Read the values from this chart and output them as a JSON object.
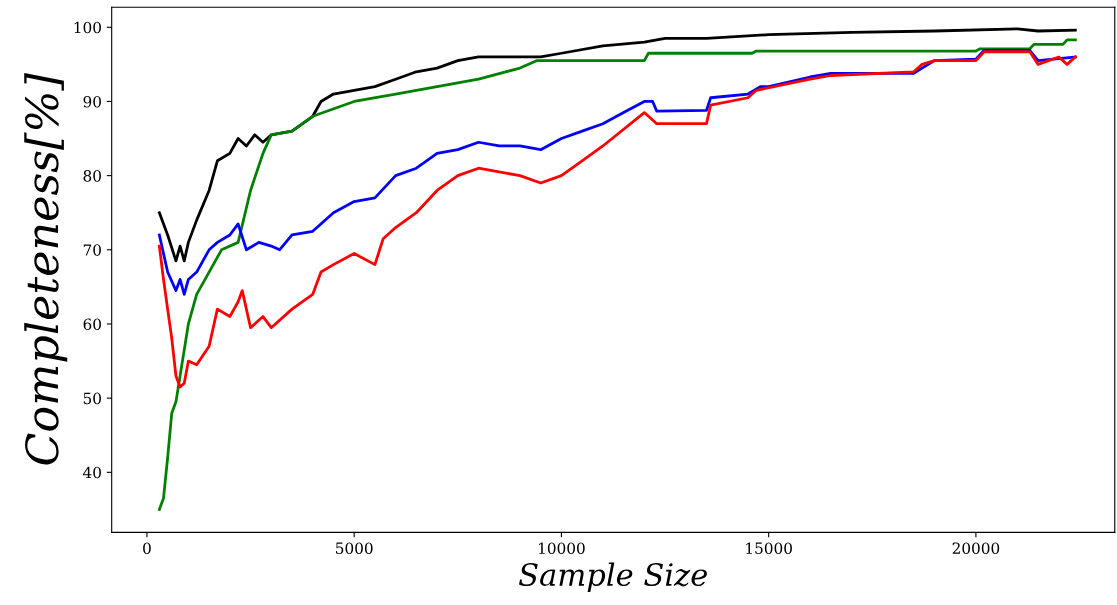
{
  "chart_data": {
    "type": "line",
    "xlabel": "Sample Size",
    "ylabel": "Completeness[%]",
    "xlim": [
      -850,
      23350
    ],
    "ylim": [
      31.9,
      102.7
    ],
    "xticks": [
      0,
      5000,
      10000,
      15000,
      20000
    ],
    "yticks": [
      40,
      50,
      60,
      70,
      80,
      90,
      100
    ],
    "grid": false,
    "legend": false,
    "marker": "none",
    "line_style": "solid",
    "series": [
      {
        "color": "#000000",
        "x": [
          300,
          500,
          700,
          800,
          900,
          1000,
          1200,
          1500,
          1700,
          2000,
          2200,
          2400,
          2600,
          2800,
          3000,
          3500,
          4000,
          4200,
          4500,
          5000,
          5500,
          6000,
          6500,
          7000,
          7500,
          8000,
          9000,
          9500,
          10000,
          11000,
          12000,
          12500,
          13500,
          15000,
          17000,
          19000,
          21000,
          21500,
          22400
        ],
        "values": [
          75,
          72,
          68.5,
          70.5,
          68.5,
          71,
          74,
          78,
          82,
          83,
          85,
          84,
          85.5,
          84.5,
          85.5,
          86,
          88,
          90,
          91,
          91.5,
          92,
          93,
          94,
          94.5,
          95.5,
          96,
          96,
          96,
          96.5,
          97.5,
          98,
          98.5,
          98.5,
          99,
          99.3,
          99.5,
          99.8,
          99.5,
          99.6
        ]
      },
      {
        "color": "#008000",
        "x": [
          300,
          400,
          500,
          600,
          700,
          800,
          1000,
          1200,
          1500,
          1800,
          2200,
          2500,
          2800,
          3000,
          3500,
          4000,
          5000,
          6000,
          7000,
          8000,
          9000,
          9400,
          12000,
          12100,
          14600,
          14700,
          20000,
          20100,
          21300,
          21400,
          22100,
          22200,
          22400
        ],
        "values": [
          35,
          36.5,
          42,
          48,
          49.5,
          53,
          60,
          64,
          67,
          70,
          71,
          78,
          83,
          85.5,
          86,
          88,
          90,
          91,
          92,
          93,
          94.5,
          95.5,
          95.5,
          96.5,
          96.5,
          96.8,
          96.8,
          97.1,
          97.1,
          97.7,
          97.7,
          98.3,
          98.3
        ]
      },
      {
        "color": "#0000ff",
        "x": [
          300,
          500,
          700,
          800,
          900,
          1000,
          1200,
          1500,
          1700,
          2000,
          2200,
          2400,
          2700,
          3000,
          3200,
          3500,
          4000,
          4500,
          5000,
          5500,
          6000,
          6500,
          7000,
          7500,
          8000,
          8500,
          9000,
          9500,
          10000,
          10500,
          11000,
          11500,
          12000,
          12200,
          12300,
          13500,
          13600,
          14500,
          14800,
          15000,
          16000,
          16500,
          18500,
          18700,
          19000,
          20000,
          20200,
          21300,
          21500,
          22400
        ],
        "values": [
          72,
          67,
          64.5,
          66,
          64,
          66,
          67,
          70,
          71,
          72,
          73.5,
          70,
          71,
          70.5,
          70,
          72,
          72.5,
          75,
          76.5,
          77,
          80,
          81,
          83,
          83.5,
          84.5,
          84,
          84,
          83.5,
          85,
          86,
          87,
          88.5,
          90,
          90,
          88.7,
          88.8,
          90.5,
          91,
          92,
          92,
          93.3,
          93.8,
          93.8,
          94.5,
          95.5,
          95.7,
          96.9,
          96.9,
          95.5,
          96
        ]
      },
      {
        "color": "#ff0000",
        "x": [
          300,
          400,
          500,
          600,
          700,
          800,
          900,
          1000,
          1200,
          1500,
          1700,
          2000,
          2200,
          2300,
          2500,
          2800,
          3000,
          3500,
          4000,
          4200,
          4500,
          5000,
          5500,
          5700,
          6000,
          6500,
          7000,
          7500,
          8000,
          9000,
          9500,
          10000,
          10500,
          11000,
          12000,
          12300,
          13500,
          13600,
          14500,
          14700,
          16000,
          16500,
          18500,
          18700,
          19000,
          20000,
          20200,
          21300,
          21500,
          22000,
          22200,
          22400
        ],
        "values": [
          70.5,
          66,
          62,
          58,
          53,
          51.5,
          52,
          55,
          54.5,
          57,
          62,
          61,
          63,
          64.5,
          59.5,
          61,
          59.5,
          62,
          64,
          67,
          68,
          69.5,
          68,
          71.5,
          73,
          75,
          78,
          80,
          81,
          80,
          79,
          80,
          82,
          84,
          88.5,
          87,
          87,
          89.5,
          90.5,
          91.5,
          93,
          93.5,
          94,
          95,
          95.5,
          95.5,
          96.7,
          96.7,
          95,
          96,
          95,
          96
        ]
      }
    ]
  }
}
